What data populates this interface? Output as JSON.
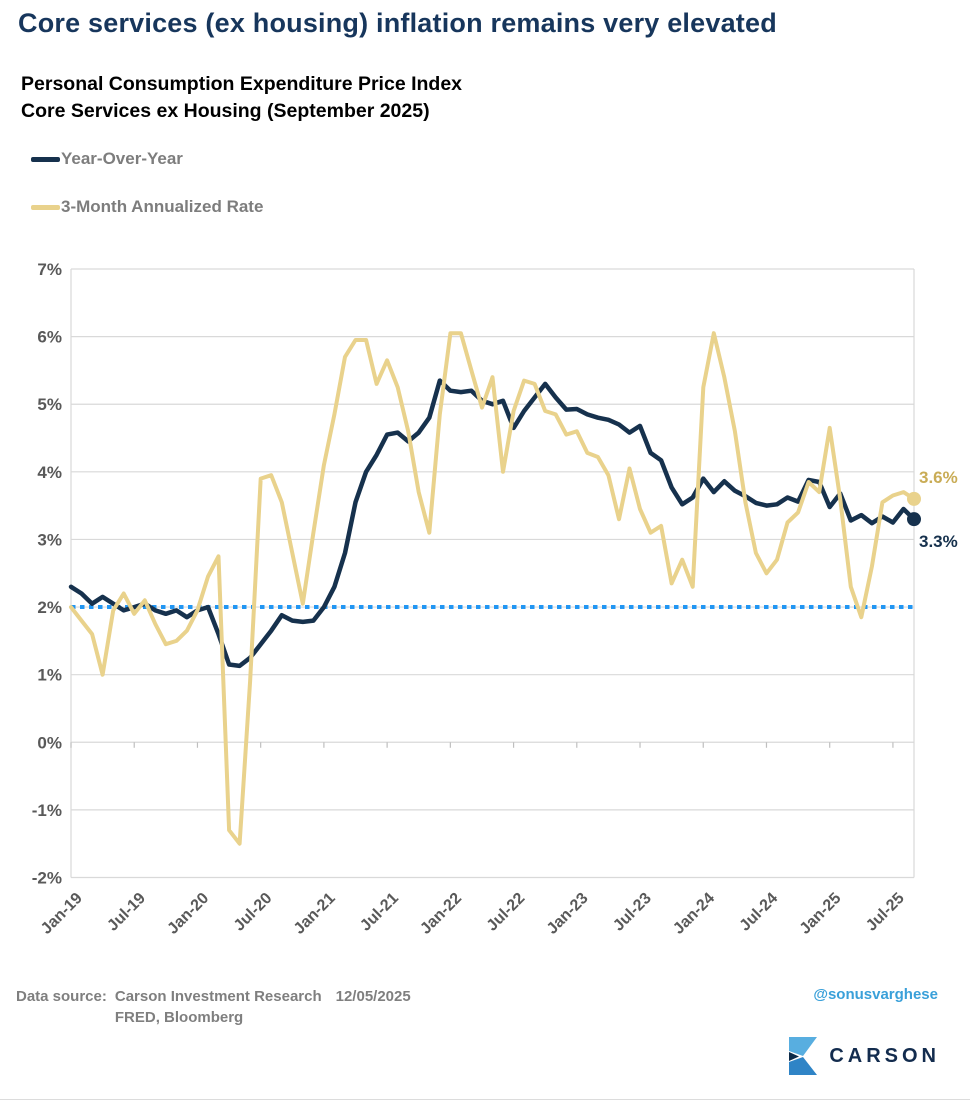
{
  "header": {
    "title": "Core services (ex housing) inflation remains very elevated",
    "subtitle_line1": "Personal Consumption Expenditure Price Index",
    "subtitle_line2": "Core Services ex Housing (September 2025)"
  },
  "legend": [
    {
      "label": "Year-Over-Year",
      "color": "#16314d"
    },
    {
      "label": "3-Month Annualized Rate",
      "color": "#e9d28c"
    }
  ],
  "chart_data": {
    "type": "line",
    "x": [
      "Jan-19",
      "Feb-19",
      "Mar-19",
      "Apr-19",
      "May-19",
      "Jun-19",
      "Jul-19",
      "Aug-19",
      "Sep-19",
      "Oct-19",
      "Nov-19",
      "Dec-19",
      "Jan-20",
      "Feb-20",
      "Mar-20",
      "Apr-20",
      "May-20",
      "Jun-20",
      "Jul-20",
      "Aug-20",
      "Sep-20",
      "Oct-20",
      "Nov-20",
      "Dec-20",
      "Jan-21",
      "Feb-21",
      "Mar-21",
      "Apr-21",
      "May-21",
      "Jun-21",
      "Jul-21",
      "Aug-21",
      "Sep-21",
      "Oct-21",
      "Nov-21",
      "Dec-21",
      "Jan-22",
      "Feb-22",
      "Mar-22",
      "Apr-22",
      "May-22",
      "Jun-22",
      "Jul-22",
      "Aug-22",
      "Sep-22",
      "Oct-22",
      "Nov-22",
      "Dec-22",
      "Jan-23",
      "Feb-23",
      "Mar-23",
      "Apr-23",
      "May-23",
      "Jun-23",
      "Jul-23",
      "Aug-23",
      "Sep-23",
      "Oct-23",
      "Nov-23",
      "Dec-23",
      "Jan-24",
      "Feb-24",
      "Mar-24",
      "Apr-24",
      "May-24",
      "Jun-24",
      "Jul-24",
      "Aug-24",
      "Sep-24",
      "Oct-24",
      "Nov-24",
      "Dec-24",
      "Jan-25",
      "Feb-25",
      "Mar-25",
      "Apr-25",
      "May-25",
      "Jun-25",
      "Jul-25",
      "Aug-25",
      "Sep-25"
    ],
    "series": [
      {
        "name": "Year-Over-Year",
        "color": "#16314d",
        "values": [
          2.3,
          2.2,
          2.05,
          2.15,
          2.05,
          1.95,
          2.0,
          2.05,
          1.95,
          1.9,
          1.95,
          1.85,
          1.95,
          2.0,
          1.6,
          1.15,
          1.13,
          1.25,
          1.45,
          1.65,
          1.88,
          1.8,
          1.78,
          1.8,
          2.0,
          2.3,
          2.8,
          3.55,
          4.0,
          4.25,
          4.55,
          4.58,
          4.45,
          4.58,
          4.8,
          5.35,
          5.2,
          5.18,
          5.2,
          5.05,
          5.0,
          5.05,
          4.65,
          4.9,
          5.1,
          5.3,
          5.1,
          4.92,
          4.93,
          4.85,
          4.8,
          4.77,
          4.7,
          4.58,
          4.68,
          4.28,
          4.17,
          3.77,
          3.52,
          3.62,
          3.9,
          3.7,
          3.86,
          3.72,
          3.64,
          3.54,
          3.5,
          3.52,
          3.62,
          3.56,
          3.88,
          3.85,
          3.48,
          3.68,
          3.28,
          3.36,
          3.24,
          3.34,
          3.25,
          3.45,
          3.3
        ]
      },
      {
        "name": "3-Month Annualized Rate",
        "color": "#e9d28c",
        "values": [
          2.0,
          1.8,
          1.6,
          1.0,
          1.95,
          2.2,
          1.9,
          2.1,
          1.75,
          1.45,
          1.5,
          1.65,
          1.95,
          2.45,
          2.75,
          -1.3,
          -1.5,
          0.9,
          3.9,
          3.95,
          3.55,
          2.8,
          2.05,
          3.1,
          4.1,
          4.85,
          5.7,
          5.95,
          5.95,
          5.3,
          5.65,
          5.25,
          4.6,
          3.7,
          3.1,
          4.85,
          6.05,
          6.05,
          5.5,
          4.95,
          5.4,
          4.0,
          4.9,
          5.35,
          5.3,
          4.9,
          4.85,
          4.55,
          4.6,
          4.28,
          4.22,
          3.95,
          3.3,
          4.05,
          3.45,
          3.1,
          3.2,
          2.35,
          2.7,
          2.3,
          5.25,
          6.05,
          5.4,
          4.6,
          3.55,
          2.8,
          2.5,
          2.7,
          3.25,
          3.4,
          3.85,
          3.7,
          4.65,
          3.6,
          2.3,
          1.85,
          2.6,
          3.55,
          3.65,
          3.7,
          3.6
        ]
      }
    ],
    "ylim": [
      -2,
      7
    ],
    "y_tick_values": [
      7,
      6,
      5,
      4,
      3,
      2,
      1,
      0,
      -1,
      -2
    ],
    "y_ticks": [
      "7%",
      "6%",
      "5%",
      "4%",
      "3%",
      "2%",
      "1%",
      "0%",
      "-1%",
      "-2%"
    ],
    "x_tick_indices": [
      0,
      6,
      12,
      18,
      24,
      30,
      36,
      42,
      48,
      54,
      60,
      66,
      72,
      78
    ],
    "x_tick_labels": [
      "Jan-19",
      "Jul-19",
      "Jan-20",
      "Jul-20",
      "Jan-21",
      "Jul-21",
      "Jan-22",
      "Jul-22",
      "Jan-23",
      "Jul-23",
      "Jan-24",
      "Jul-24",
      "Jan-25",
      "Jul-25"
    ],
    "reference_line": {
      "value": 2,
      "color": "#2196f3",
      "style": "dotted"
    },
    "end_labels": [
      {
        "text": "3.3%",
        "series": 0,
        "color": "#16314d",
        "dy": 28
      },
      {
        "text": "3.6%",
        "series": 1,
        "color": "#c9ac56",
        "dy": -16
      }
    ],
    "grid": true,
    "grid_color": "#d9d9d9",
    "title": "Personal Consumption Expenditure Price Index Core Services ex Housing (September 2025)",
    "xlabel": "",
    "ylabel": ""
  },
  "footer": {
    "data_source_label": "Data source:",
    "source_line1": "Carson Investment Research",
    "date": "12/05/2025",
    "source_line2": "FRED, Bloomberg",
    "handle": "@sonusvarghese",
    "logo_text": "CARSON",
    "logo_colors": {
      "light_blue": "#58aee0",
      "mid_blue": "#2f84c6",
      "navy": "#0d2b49"
    }
  }
}
